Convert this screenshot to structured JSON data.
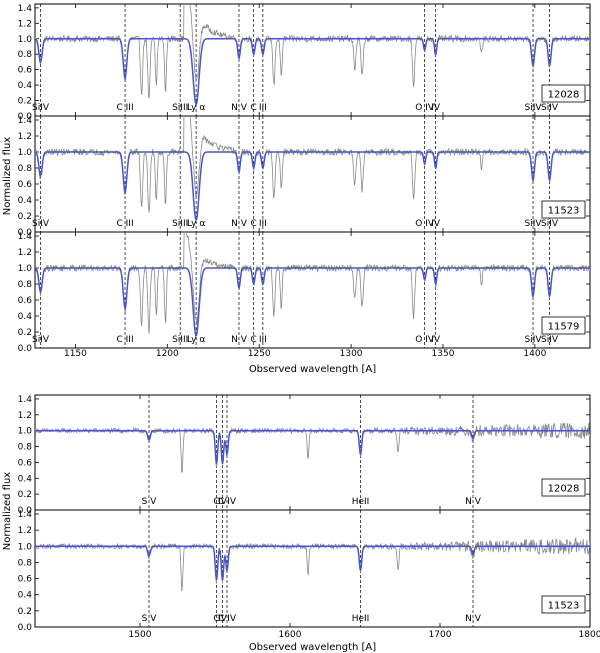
{
  "chart_data": [
    {
      "type": "line",
      "group": "top",
      "xlim": [
        1128,
        1430
      ],
      "ylim": [
        0.0,
        1.45
      ],
      "xticks": [
        1150,
        1200,
        1250,
        1300,
        1350,
        1400
      ],
      "yticks": [
        0.0,
        0.2,
        0.4,
        0.6,
        0.8,
        1.0,
        1.2,
        1.4
      ],
      "xlabel": "Observed wavelength [A]",
      "ylabel": "Normalized flux",
      "series_colors": {
        "data": "#888888",
        "model": "#4a55c8"
      },
      "lines": [
        {
          "label": "SiIV",
          "x": 1131
        },
        {
          "label": "C  III",
          "x": 1177
        },
        {
          "label": "SiIII",
          "x": 1207
        },
        {
          "label": "Ly  α",
          "x": 1215.67
        },
        {
          "label": "N  V",
          "x": 1239
        },
        {
          "label": "C",
          "x": 1247
        },
        {
          "label": "III",
          "x": 1252
        },
        {
          "label": "O  IV",
          "x": 1340
        },
        {
          "label": "IV",
          "x": 1346
        },
        {
          "label": "SiIV",
          "x": 1399
        },
        {
          "label": "SiIV",
          "x": 1408
        }
      ],
      "panels": [
        {
          "id": "12028",
          "lya_wing": 1.0
        },
        {
          "id": "11523",
          "lya_wing": 1.0
        },
        {
          "id": "11579",
          "lya_wing": 0.6
        }
      ],
      "absorptions": [
        {
          "x": 1131,
          "depth": 0.3,
          "w": 0.9,
          "model": true
        },
        {
          "x": 1177,
          "depth": 0.5,
          "w": 1.0,
          "model": true
        },
        {
          "x": 1186,
          "depth": 0.7,
          "w": 0.6,
          "model": false
        },
        {
          "x": 1190,
          "depth": 0.8,
          "w": 0.6,
          "model": false
        },
        {
          "x": 1194,
          "depth": 0.6,
          "w": 0.5,
          "model": false
        },
        {
          "x": 1199,
          "depth": 0.7,
          "w": 0.5,
          "model": false
        },
        {
          "x": 1215.67,
          "depth": 0.85,
          "w": 1.6,
          "model": true
        },
        {
          "x": 1239,
          "depth": 0.25,
          "w": 0.7,
          "model": true
        },
        {
          "x": 1247,
          "depth": 0.2,
          "w": 0.7,
          "model": true
        },
        {
          "x": 1252,
          "depth": 0.2,
          "w": 0.7,
          "model": true
        },
        {
          "x": 1258,
          "depth": 0.6,
          "w": 0.6,
          "model": false
        },
        {
          "x": 1262,
          "depth": 0.5,
          "w": 0.5,
          "model": false
        },
        {
          "x": 1302,
          "depth": 0.4,
          "w": 0.6,
          "model": false
        },
        {
          "x": 1306,
          "depth": 0.5,
          "w": 0.6,
          "model": false
        },
        {
          "x": 1334,
          "depth": 0.6,
          "w": 0.6,
          "model": false
        },
        {
          "x": 1340,
          "depth": 0.15,
          "w": 0.6,
          "model": true
        },
        {
          "x": 1346,
          "depth": 0.2,
          "w": 0.6,
          "model": true
        },
        {
          "x": 1371,
          "depth": 0.2,
          "w": 0.5,
          "model": false
        },
        {
          "x": 1399,
          "depth": 0.35,
          "w": 0.8,
          "model": true
        },
        {
          "x": 1408,
          "depth": 0.35,
          "w": 0.8,
          "model": true
        }
      ]
    },
    {
      "type": "line",
      "group": "bottom",
      "xlim": [
        1430,
        1800
      ],
      "ylim": [
        0.0,
        1.45
      ],
      "xticks": [
        1500,
        1600,
        1700,
        1800
      ],
      "yticks": [
        0.0,
        0.2,
        0.4,
        0.6,
        0.8,
        1.0,
        1.2,
        1.4
      ],
      "xlabel": "Observed wavelength [A]",
      "ylabel": "Normalized flux",
      "series_colors": {
        "data": "#888888",
        "model": "#4a55c8"
      },
      "lines": [
        {
          "label": "S  V",
          "x": 1506
        },
        {
          "label": "C",
          "x": 1551
        },
        {
          "label": "IV",
          "x": 1555
        },
        {
          "label": "C  IV",
          "x": 1558
        },
        {
          "label": "HeII",
          "x": 1647
        },
        {
          "label": "N  V",
          "x": 1722
        }
      ],
      "panels": [
        {
          "id": "12028",
          "lya_wing": 0
        },
        {
          "id": "11523",
          "lya_wing": 0
        }
      ],
      "absorptions": [
        {
          "x": 1506,
          "depth": 0.12,
          "w": 0.9,
          "model": true
        },
        {
          "x": 1528,
          "depth": 0.55,
          "w": 0.6,
          "model": false
        },
        {
          "x": 1551,
          "depth": 0.42,
          "w": 0.8,
          "model": true
        },
        {
          "x": 1555,
          "depth": 0.42,
          "w": 0.8,
          "model": true
        },
        {
          "x": 1558,
          "depth": 0.3,
          "w": 0.8,
          "model": true
        },
        {
          "x": 1612,
          "depth": 0.35,
          "w": 0.6,
          "model": false
        },
        {
          "x": 1647,
          "depth": 0.3,
          "w": 0.8,
          "model": true
        },
        {
          "x": 1672,
          "depth": 0.3,
          "w": 0.6,
          "model": false
        },
        {
          "x": 1722,
          "depth": 0.1,
          "w": 0.8,
          "model": true
        }
      ]
    }
  ]
}
